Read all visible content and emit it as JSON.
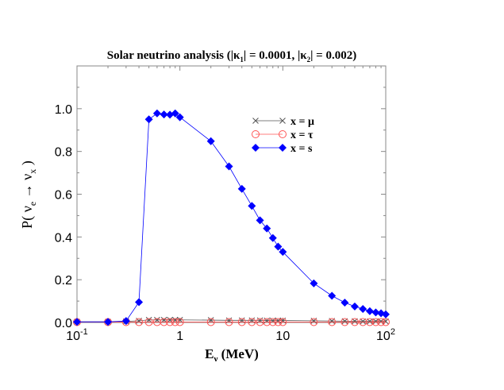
{
  "chart_data": {
    "type": "line",
    "title": "Solar neutrino analysis (|κ1| = 0.0001, |κ2| = 0.002)",
    "title_parts": {
      "prefix": "Solar neutrino analysis (|κ",
      "sub1": "1",
      "mid": "| = 0.0001, |κ",
      "sub2": "2",
      "suffix": "| = 0.002)"
    },
    "xlabel": "Eν (MeV)",
    "xlabel_parts": {
      "main": "E",
      "sub": "ν",
      "unit": " (MeV)"
    },
    "ylabel": "P( νe → νx )",
    "ylabel_parts": {
      "open": "P( ν",
      "sub_e": "e",
      "arrow": " → ν",
      "sub_x": "x",
      "close": " )"
    },
    "x_scale": "log",
    "xlim": [
      0.1,
      100
    ],
    "ylim": [
      0,
      1.2
    ],
    "x_ticks": [
      {
        "value": 0.1,
        "base": "10",
        "exp": "-1"
      },
      {
        "value": 1,
        "base": "1",
        "exp": ""
      },
      {
        "value": 10,
        "base": "10",
        "exp": ""
      },
      {
        "value": 100,
        "base": "10",
        "exp": "2"
      }
    ],
    "y_ticks": [
      "0.0",
      "0.2",
      "0.4",
      "0.6",
      "0.8",
      "1.0"
    ],
    "grid": false,
    "legend_placement": "top-right",
    "x": [
      0.1,
      0.2,
      0.3,
      0.4,
      0.5,
      0.6,
      0.7,
      0.8,
      0.9,
      1,
      2,
      3,
      4,
      5,
      6,
      7,
      8,
      9,
      10,
      20,
      30,
      40,
      50,
      60,
      70,
      80,
      90,
      100
    ],
    "series": [
      {
        "name": "x = μ",
        "color": "#555555",
        "marker": "cross",
        "values": [
          0.003,
          0.003,
          0.005,
          0.008,
          0.012,
          0.012,
          0.012,
          0.012,
          0.012,
          0.012,
          0.011,
          0.01,
          0.01,
          0.01,
          0.01,
          0.009,
          0.009,
          0.009,
          0.009,
          0.008,
          0.007,
          0.006,
          0.006,
          0.005,
          0.005,
          0.005,
          0.005,
          0.005
        ]
      },
      {
        "name": "x = τ",
        "color": "#ff5555",
        "marker": "circle",
        "values": [
          0.002,
          0.002,
          0.002,
          0.002,
          0.002,
          0.002,
          0.002,
          0.002,
          0.002,
          0.002,
          0.002,
          0.002,
          0.002,
          0.002,
          0.002,
          0.002,
          0.002,
          0.002,
          0.002,
          0.002,
          0.002,
          0.002,
          0.002,
          0.002,
          0.002,
          0.002,
          0.002,
          0.002
        ]
      },
      {
        "name": "x = s",
        "color": "#0000ff",
        "marker": "diamond",
        "values": [
          0.003,
          0.003,
          0.007,
          0.095,
          0.95,
          0.978,
          0.973,
          0.972,
          0.978,
          0.96,
          0.848,
          0.73,
          0.625,
          0.545,
          0.478,
          0.44,
          0.395,
          0.355,
          0.33,
          0.183,
          0.125,
          0.093,
          0.075,
          0.063,
          0.053,
          0.047,
          0.043,
          0.038
        ]
      }
    ]
  }
}
